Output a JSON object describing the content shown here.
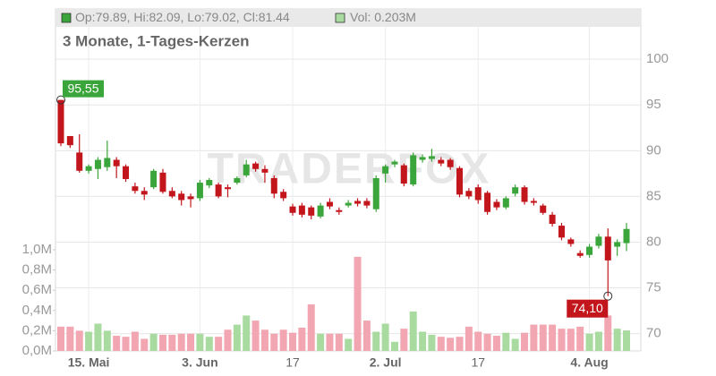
{
  "chart_data": {
    "type": "candlestick",
    "header_ohlc": "Op:79.89, Hi:82.09, Lo:79.02, Cl:81.44",
    "header_volume": "Vol: 0.203M",
    "subtitle": "3 Monate, 1-Tages-Kerzen",
    "watermark": "TRADERFOX",
    "max_label": "95,55",
    "min_label": "74,10",
    "up_color": "#3aa53a",
    "down_color": "#c2161c",
    "volume_up_color": "#a9dba1",
    "volume_down_color": "#f2a6b1",
    "categories": [
      null,
      null,
      null,
      "15. Mai",
      null,
      null,
      null,
      null,
      null,
      null,
      null,
      null,
      null,
      null,
      null,
      "3. Jun",
      null,
      null,
      null,
      null,
      null,
      null,
      null,
      null,
      null,
      "17",
      null,
      null,
      null,
      null,
      null,
      null,
      null,
      null,
      null,
      "2. Jul",
      null,
      null,
      null,
      null,
      null,
      null,
      null,
      null,
      null,
      "17",
      null,
      null,
      null,
      null,
      null,
      null,
      null,
      null,
      null,
      null,
      null,
      "4. Aug",
      null,
      null,
      null,
      null
    ],
    "open": [
      95.55,
      91.6,
      89.8,
      87.8,
      88.0,
      88.2,
      89.0,
      88.3,
      86.1,
      85.6,
      86.0,
      87.6,
      85.6,
      85.3,
      85.0,
      84.8,
      86.2,
      86.3,
      86.0,
      86.5,
      87.3,
      88.6,
      88.0,
      87.0,
      85.5,
      83.9,
      84.0,
      83.8,
      82.8,
      84.4,
      83.5,
      84.0,
      84.5,
      84.5,
      83.6,
      87.5,
      88.5,
      88.4,
      86.3,
      89.0,
      89.1,
      89.0,
      89.0,
      88.1,
      85.6,
      86.0,
      85.4,
      84.4,
      83.8,
      85.3,
      86.0,
      84.5,
      84.0,
      83.0,
      81.8,
      80.3,
      78.8,
      78.6,
      79.6,
      80.6,
      79.5,
      79.89
    ],
    "high": [
      95.55,
      91.6,
      91.8,
      88.5,
      89.3,
      91.1,
      89.3,
      88.5,
      86.5,
      86.0,
      88.0,
      88.0,
      86.0,
      85.6,
      85.3,
      86.8,
      87.0,
      86.5,
      86.3,
      87.2,
      89.0,
      88.8,
      88.4,
      87.3,
      85.8,
      84.2,
      84.3,
      84.0,
      84.3,
      84.8,
      83.8,
      84.6,
      84.8,
      84.8,
      87.3,
      88.5,
      89.0,
      88.6,
      89.8,
      89.6,
      90.2,
      89.3,
      89.2,
      88.3,
      85.9,
      86.3,
      85.6,
      84.7,
      85.0,
      86.3,
      86.2,
      84.8,
      84.2,
      83.3,
      82.1,
      80.5,
      79.1,
      79.8,
      80.9,
      81.5,
      80.3,
      82.09
    ],
    "low": [
      90.5,
      90.3,
      87.6,
      87.5,
      86.9,
      87.8,
      87.0,
      86.6,
      85.3,
      84.6,
      85.8,
      85.3,
      84.8,
      84.0,
      83.8,
      84.5,
      85.9,
      84.8,
      84.9,
      86.3,
      87.1,
      87.7,
      86.5,
      84.8,
      84.5,
      82.9,
      82.7,
      82.5,
      82.6,
      83.6,
      83.0,
      83.8,
      83.9,
      83.7,
      83.3,
      86.5,
      88.2,
      86.1,
      86.1,
      88.7,
      88.8,
      88.3,
      87.9,
      84.9,
      84.7,
      84.2,
      83.0,
      83.5,
      83.6,
      85.0,
      84.1,
      84.0,
      83.0,
      81.7,
      80.2,
      79.5,
      78.3,
      78.3,
      79.3,
      74.1,
      78.5,
      79.02
    ],
    "close": [
      90.8,
      90.6,
      87.8,
      88.3,
      89.0,
      89.2,
      88.3,
      86.9,
      85.6,
      85.2,
      87.8,
      85.5,
      85.0,
      84.6,
      84.7,
      86.5,
      86.8,
      85.0,
      85.8,
      87.0,
      88.5,
      88.0,
      87.6,
      85.3,
      84.8,
      83.2,
      83.0,
      82.9,
      84.0,
      83.9,
      83.3,
      84.3,
      84.2,
      84.0,
      87.0,
      88.3,
      88.8,
      86.4,
      89.5,
      89.3,
      89.4,
      88.6,
      88.2,
      85.2,
      85.0,
      84.6,
      83.3,
      83.8,
      84.8,
      86.0,
      84.4,
      84.3,
      83.2,
      82.0,
      80.5,
      79.8,
      78.5,
      79.5,
      80.6,
      78.0,
      80.0,
      81.44
    ],
    "volume": [
      0.24,
      0.24,
      0.2,
      0.19,
      0.27,
      0.2,
      0.15,
      0.14,
      0.19,
      0.12,
      0.17,
      0.16,
      0.16,
      0.17,
      0.17,
      0.17,
      0.14,
      0.14,
      0.21,
      0.26,
      0.35,
      0.3,
      0.21,
      0.17,
      0.21,
      0.18,
      0.23,
      0.46,
      0.17,
      0.17,
      0.17,
      0.12,
      0.93,
      0.3,
      0.19,
      0.27,
      0.09,
      0.22,
      0.39,
      0.19,
      0.16,
      0.14,
      0.13,
      0.14,
      0.24,
      0.19,
      0.17,
      0.15,
      0.18,
      0.12,
      0.18,
      0.26,
      0.26,
      0.26,
      0.22,
      0.22,
      0.24,
      0.17,
      0.19,
      0.35,
      0.22,
      0.203
    ],
    "ylim": [
      68.1,
      105.5
    ],
    "yticks": [
      70,
      75,
      80,
      85,
      90,
      95,
      100
    ],
    "y2lim": [
      0,
      3.38
    ],
    "y2ticks": [
      {
        "value": 0,
        "label": "0,0M"
      },
      {
        "value": 0.2,
        "label": "0,2M"
      },
      {
        "value": 0.4,
        "label": "0,4M"
      },
      {
        "value": 0.6,
        "label": "0,6M"
      },
      {
        "value": 0.8,
        "label": "0,8M"
      },
      {
        "value": 1.0,
        "label": "1,0M"
      }
    ],
    "grid": true
  }
}
